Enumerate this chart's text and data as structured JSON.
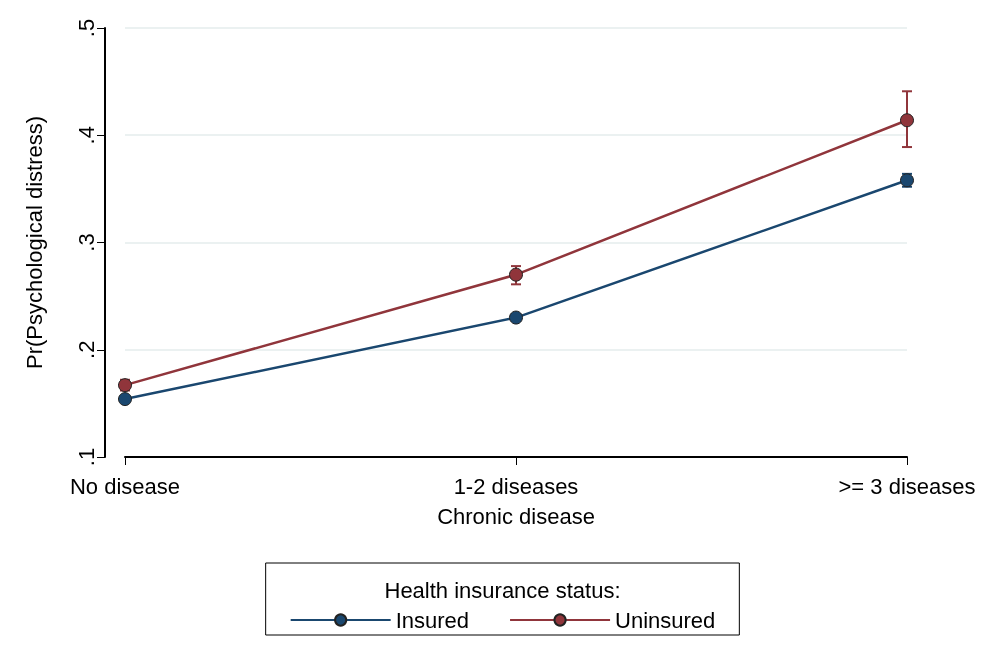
{
  "chart_data": {
    "type": "line",
    "xlabel": "Chronic disease",
    "ylabel": "Pr(Psychological distress)",
    "legend_title": "Health insurance status:",
    "categories": [
      "No disease",
      "1-2 diseases",
      ">= 3 diseases"
    ],
    "series": [
      {
        "name": "Insured",
        "color": "#1a476f",
        "values": [
          0.154,
          0.23,
          0.358
        ],
        "errors": [
          [
            0.151,
            0.157
          ],
          [
            0.227,
            0.233
          ],
          [
            0.352,
            0.364
          ]
        ]
      },
      {
        "name": "Uninsured",
        "color": "#90353b",
        "values": [
          0.167,
          0.27,
          0.414
        ],
        "errors": [
          [
            0.162,
            0.172
          ],
          [
            0.261,
            0.278
          ],
          [
            0.389,
            0.441
          ]
        ]
      }
    ],
    "ylim": [
      0.1,
      0.5
    ],
    "yticks": [
      {
        "value": 0.1,
        "label": ".1"
      },
      {
        "value": 0.2,
        "label": ".2"
      },
      {
        "value": 0.3,
        "label": ".3"
      },
      {
        "value": 0.4,
        "label": ".4"
      },
      {
        "value": 0.5,
        "label": ".5"
      }
    ],
    "grid": "y",
    "legend": "bottom",
    "marker": "circle",
    "line_style": "solid"
  }
}
